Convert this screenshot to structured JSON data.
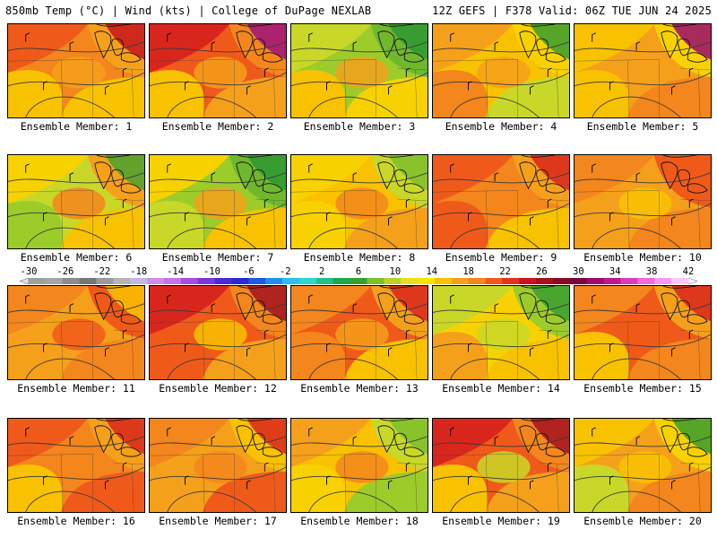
{
  "header": {
    "left": "850mb Temp (°C) | Wind (kts) | College of DuPage NEXLAB",
    "right": "12Z GEFS | F378 Valid: 06Z TUE JUN 24 2025"
  },
  "members": [
    {
      "label": "Ensemble Member: 1",
      "palette": [
        "#ef5a1a",
        "#f3861c",
        "#f5a01b",
        "#f8c200",
        "#f8c200",
        "#f5a01b"
      ],
      "warm_corner": "#c8141e"
    },
    {
      "label": "Ensemble Member: 2",
      "palette": [
        "#d9261c",
        "#ef5a1a",
        "#f3861c",
        "#f5a01b",
        "#f8c200",
        "#f5a01b"
      ],
      "warm_corner": "#a0107a"
    },
    {
      "label": "Ensemble Member: 3",
      "palette": [
        "#c9d828",
        "#9ccc2a",
        "#6fb82e",
        "#f8d200",
        "#f8c200",
        "#f5a01b"
      ],
      "warm_corner": "#2f9830"
    },
    {
      "label": "Ensemble Member: 4",
      "palette": [
        "#f5a01b",
        "#f8c200",
        "#f8d200",
        "#c9d828",
        "#f3861c",
        "#f5a01b"
      ],
      "warm_corner": "#3a9e2e"
    },
    {
      "label": "Ensemble Member: 5",
      "palette": [
        "#f8c200",
        "#f5a01b",
        "#f8d200",
        "#f3861c",
        "#f8c200",
        "#f5a01b"
      ],
      "warm_corner": "#9b0e6e"
    },
    {
      "label": "Ensemble Member: 6",
      "palette": [
        "#f8d200",
        "#c9d828",
        "#f5a01b",
        "#f8c200",
        "#9ccc2a",
        "#f3861c"
      ],
      "warm_corner": "#4aa22e"
    },
    {
      "label": "Ensemble Member: 7",
      "palette": [
        "#f8d200",
        "#9ccc2a",
        "#6fb82e",
        "#f8c200",
        "#c9d828",
        "#f5a01b"
      ],
      "warm_corner": "#2f9830"
    },
    {
      "label": "Ensemble Member: 8",
      "palette": [
        "#f8d200",
        "#f8c200",
        "#c9d828",
        "#f5a01b",
        "#f8d200",
        "#f3861c"
      ],
      "warm_corner": "#7cc02c"
    },
    {
      "label": "Ensemble Member: 9",
      "palette": [
        "#ef5a1a",
        "#f3861c",
        "#f5a01b",
        "#f8c200",
        "#ef5a1a",
        "#f3861c"
      ],
      "warm_corner": "#d9261c"
    },
    {
      "label": "Ensemble Member: 10",
      "palette": [
        "#f3861c",
        "#f5a01b",
        "#ef5a1a",
        "#f3861c",
        "#f5a01b",
        "#f8c200"
      ],
      "warm_corner": "#ef5a1a"
    },
    {
      "label": "Ensemble Member: 11",
      "palette": [
        "#f3861c",
        "#f5a01b",
        "#ef5a1a",
        "#f3861c",
        "#f5a01b",
        "#ef5a1a"
      ],
      "warm_corner": "#f8c200"
    },
    {
      "label": "Ensemble Member: 12",
      "palette": [
        "#d9261c",
        "#ef5a1a",
        "#f3861c",
        "#f5a01b",
        "#ef5a1a",
        "#f8c200"
      ],
      "warm_corner": "#a3121e"
    },
    {
      "label": "Ensemble Member: 13",
      "palette": [
        "#f3861c",
        "#ef5a1a",
        "#f5a01b",
        "#f8c200",
        "#f3861c",
        "#f5a01b"
      ],
      "warm_corner": "#d9261c"
    },
    {
      "label": "Ensemble Member: 14",
      "palette": [
        "#c9d828",
        "#f8d200",
        "#9ccc2a",
        "#f8c200",
        "#f5a01b",
        "#c9d828"
      ],
      "warm_corner": "#3a9e2e"
    },
    {
      "label": "Ensemble Member: 15",
      "palette": [
        "#f3861c",
        "#ef5a1a",
        "#f5a01b",
        "#f3861c",
        "#f8c200",
        "#ef5a1a"
      ],
      "warm_corner": "#d9261c"
    },
    {
      "label": "Ensemble Member: 16",
      "palette": [
        "#ef5a1a",
        "#f3861c",
        "#f5a01b",
        "#ef5a1a",
        "#f8c200",
        "#f3861c"
      ],
      "warm_corner": "#d9261c"
    },
    {
      "label": "Ensemble Member: 17",
      "palette": [
        "#f3861c",
        "#f5a01b",
        "#f8c200",
        "#ef5a1a",
        "#f5a01b",
        "#f3861c"
      ],
      "warm_corner": "#d9261c"
    },
    {
      "label": "Ensemble Member: 18",
      "palette": [
        "#f5a01b",
        "#f8c200",
        "#c9d828",
        "#9ccc2a",
        "#f8d200",
        "#f3861c"
      ],
      "warm_corner": "#7cc02c"
    },
    {
      "label": "Ensemble Member: 19",
      "palette": [
        "#d9261c",
        "#ef5a1a",
        "#f3861c",
        "#f5a01b",
        "#f8c200",
        "#c9d828"
      ],
      "warm_corner": "#a3121e"
    },
    {
      "label": "Ensemble Member: 20",
      "palette": [
        "#f8c200",
        "#f5a01b",
        "#f8d200",
        "#f3861c",
        "#c9d828",
        "#f8c200"
      ],
      "warm_corner": "#3a9e2e"
    }
  ],
  "colorbar": {
    "tick_labels": [
      "-30",
      "-26",
      "-22",
      "-18",
      "-14",
      "-10",
      "-6",
      "-2",
      "2",
      "6",
      "10",
      "14",
      "18",
      "22",
      "26",
      "30",
      "34",
      "38",
      "42"
    ],
    "colors": [
      "#9aa39a",
      "#a5a5a5",
      "#8c8c8c",
      "#777777",
      "#9b9b9b",
      "#b4b4b4",
      "#c3b8e0",
      "#cd8fe6",
      "#c873e8",
      "#a44fe0",
      "#7f36d8",
      "#4b2bd0",
      "#2a2ad2",
      "#1f5be0",
      "#1f8ff0",
      "#28c0f0",
      "#2cd8d0",
      "#22c08a",
      "#1fa650",
      "#3a9e2e",
      "#7cc02c",
      "#b9d12a",
      "#e6e020",
      "#f8e400",
      "#f8c200",
      "#f5a01b",
      "#f3861c",
      "#ef5a1a",
      "#e4321c",
      "#c8141e",
      "#a3121e",
      "#870c22",
      "#7a0a3c",
      "#a00c6a",
      "#c01890",
      "#d83cc0",
      "#ee6ce0",
      "#f59af0",
      "#fac8f6"
    ]
  }
}
